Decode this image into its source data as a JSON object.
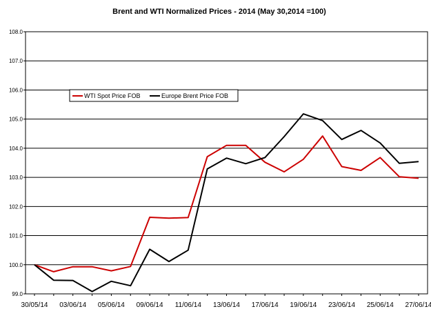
{
  "chart_data": {
    "type": "line",
    "title": "Brent and WTI Normalized Prices  - 2014 (May 30,2014 =100)",
    "xlabel": "",
    "ylabel": "",
    "ylim": [
      99.0,
      108.0
    ],
    "yticks": [
      "99.0",
      "100.0",
      "101.0",
      "102.0",
      "103.0",
      "104.0",
      "105.0",
      "106.0",
      "107.0",
      "108.0"
    ],
    "xtick_labels": [
      "30/05/14",
      "03/06/14",
      "05/06/14",
      "09/06/14",
      "11/06/14",
      "13/06/14",
      "17/06/14",
      "19/06/14",
      "23/06/14",
      "25/06/14",
      "27/06/14"
    ],
    "x": [
      "30/05/14",
      "02/06/14",
      "03/06/14",
      "04/06/14",
      "05/06/14",
      "06/06/14",
      "09/06/14",
      "10/06/14",
      "11/06/14",
      "12/06/14",
      "13/06/14",
      "16/06/14",
      "17/06/14",
      "18/06/14",
      "19/06/14",
      "20/06/14",
      "23/06/14",
      "24/06/14",
      "25/06/14",
      "26/06/14",
      "27/06/14"
    ],
    "grid": "horizontal",
    "legend_position": "upper-left",
    "series": [
      {
        "name": "WTI Spot Price FOB",
        "color": "#cc0000",
        "values": [
          100.0,
          99.76,
          99.93,
          99.93,
          99.79,
          99.94,
          101.63,
          101.6,
          101.62,
          103.71,
          104.1,
          104.1,
          103.52,
          103.19,
          103.62,
          104.42,
          103.37,
          103.24,
          103.68,
          103.02,
          102.97
        ]
      },
      {
        "name": "Europe Brent Price FOB",
        "color": "#000000",
        "values": [
          100.0,
          99.47,
          99.46,
          99.08,
          99.43,
          99.28,
          100.53,
          100.11,
          100.5,
          103.29,
          103.66,
          103.47,
          103.68,
          104.4,
          105.18,
          104.95,
          104.3,
          104.61,
          104.18,
          103.48,
          103.54
        ]
      }
    ]
  }
}
